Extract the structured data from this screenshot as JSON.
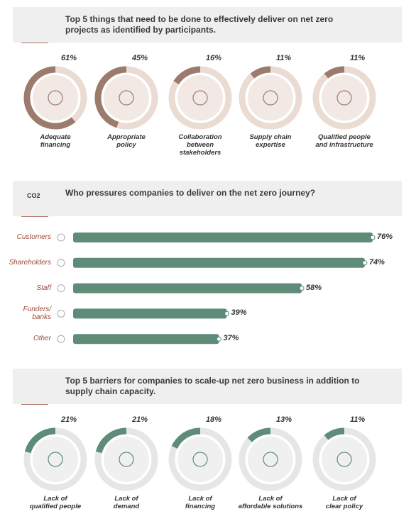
{
  "chart_data": [
    {
      "type": "ring",
      "title": "Top 5 things that need to be done to effectively deliver on net zero projects as identified by participants.",
      "categories": [
        "Adequate\nfinancing",
        "Appropriate\npolicy",
        "Collaboration\nbetween\nstakeholders",
        "Supply chain\nexpertise",
        "Qualified people\nand infrastructure"
      ],
      "values": [
        61,
        45,
        16,
        11,
        11
      ],
      "value_labels": [
        "61%",
        "45%",
        "16%",
        "11%",
        "11%"
      ],
      "ylim": [
        0,
        100
      ],
      "color": "#9c7b6c",
      "track_color": "#eadbd3"
    },
    {
      "type": "bar",
      "title": "Who pressures companies to deliver on the net zero journey?",
      "icon_text": "CO2",
      "categories": [
        "Customers",
        "Shareholders",
        "Staff",
        "Funders/\nbanks",
        "Other"
      ],
      "values": [
        76,
        74,
        58,
        39,
        37
      ],
      "value_labels": [
        "76%",
        "74%",
        "58%",
        "39%",
        "37%"
      ],
      "xlim": [
        0,
        76
      ],
      "color": "#5e8c78"
    },
    {
      "type": "ring",
      "title": "Top 5 barriers for companies to scale-up net zero business in addition to supply chain capacity.",
      "categories": [
        "Lack of\nqualified people",
        "Lack of\ndemand",
        "Lack of\nfinancing",
        "Lack of\naffordable solutions",
        "Lack of\nclear policy"
      ],
      "values": [
        21,
        21,
        18,
        13,
        11
      ],
      "value_labels": [
        "21%",
        "21%",
        "18%",
        "13%",
        "11%"
      ],
      "ylim": [
        0,
        100
      ],
      "color": "#5e8c78",
      "track_color": "#e6e6e6"
    }
  ]
}
